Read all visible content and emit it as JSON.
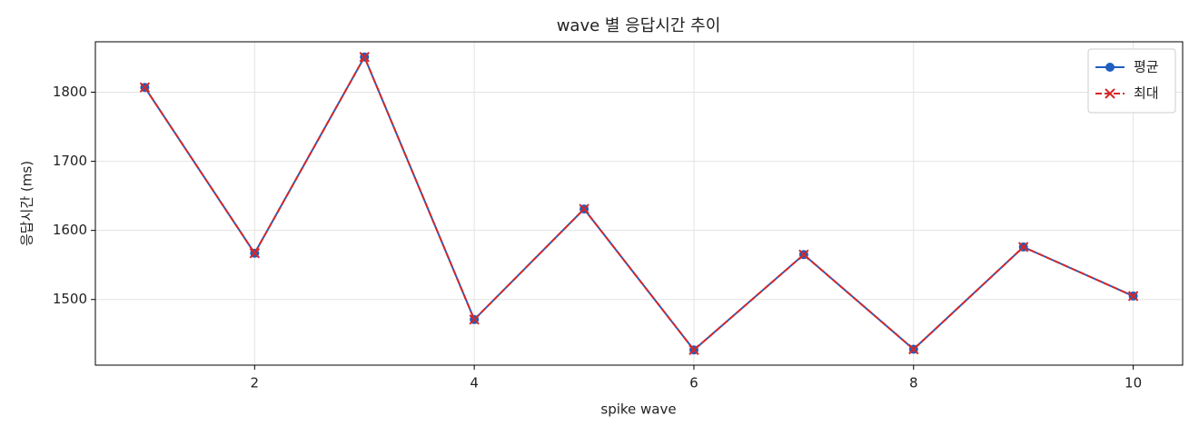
{
  "chart_data": {
    "type": "line",
    "title": "wave 별 응답시간 추이",
    "x_label": "spike wave",
    "y_label": "응답시간 (ms)",
    "x": [
      1,
      2,
      3,
      4,
      5,
      6,
      7,
      8,
      9,
      10
    ],
    "series": [
      {
        "name": "평균",
        "color": "#1f5fbf",
        "marker": "o",
        "linestyle": "solid",
        "values": [
          1807,
          1567,
          1851,
          1471,
          1631,
          1427,
          1565,
          1428,
          1576,
          1505
        ]
      },
      {
        "name": "최대",
        "color": "#d62728",
        "marker": "x",
        "linestyle": "dashed",
        "values": [
          1807,
          1567,
          1851,
          1471,
          1631,
          1427,
          1565,
          1428,
          1576,
          1505
        ]
      }
    ],
    "xlim": [
      0.55,
      10.45
    ],
    "xticks": [
      2,
      4,
      6,
      8,
      10
    ],
    "ylim": [
      1405,
      1873
    ],
    "yticks": [
      1500,
      1600,
      1700,
      1800
    ],
    "grid": true,
    "legend": "upper right"
  }
}
